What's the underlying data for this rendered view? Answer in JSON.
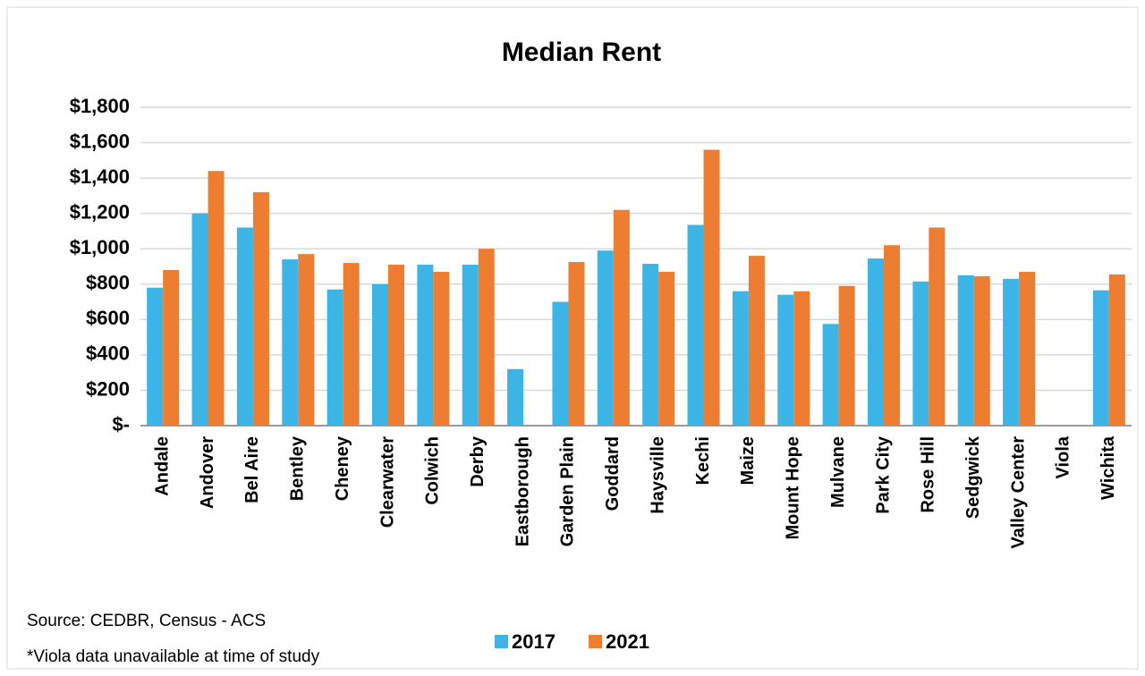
{
  "chart_data": {
    "type": "bar",
    "title": "Median Rent",
    "categories": [
      "Andale",
      "Andover",
      "Bel Aire",
      "Bentley",
      "Cheney",
      "Clearwater",
      "Colwich",
      "Derby",
      "Eastborough",
      "Garden Plain",
      "Goddard",
      "Haysville",
      "Kechi",
      "Maize",
      "Mount Hope",
      "Mulvane",
      "Park City",
      "Rose Hill",
      "Sedgwick",
      "Valley Center",
      "Viola",
      "Wichita"
    ],
    "series": [
      {
        "name": "2017",
        "color": "#3cb4e5",
        "values": [
          780,
          1200,
          1120,
          940,
          770,
          800,
          910,
          910,
          320,
          700,
          990,
          915,
          1135,
          760,
          740,
          575,
          945,
          815,
          850,
          830,
          null,
          765
        ]
      },
      {
        "name": "2021",
        "color": "#ed7d31",
        "values": [
          880,
          1440,
          1320,
          970,
          920,
          910,
          870,
          1000,
          null,
          925,
          1220,
          870,
          1560,
          960,
          760,
          790,
          1020,
          1120,
          845,
          870,
          null,
          855
        ]
      }
    ],
    "ylim": [
      0,
      1800
    ],
    "yticks": [
      {
        "value": 0,
        "label": "$-"
      },
      {
        "value": 200,
        "label": "$200"
      },
      {
        "value": 400,
        "label": "$400"
      },
      {
        "value": 600,
        "label": "$600"
      },
      {
        "value": 800,
        "label": "$800"
      },
      {
        "value": 1000,
        "label": "$1,000"
      },
      {
        "value": 1200,
        "label": "$1,200"
      },
      {
        "value": 1400,
        "label": "$1,400"
      },
      {
        "value": 1600,
        "label": "$1,600"
      },
      {
        "value": 1800,
        "label": "$1,800"
      }
    ],
    "grid": true,
    "legend": "bottom",
    "source": "Source: CEDBR, Census - ACS",
    "note": "*Viola data unavailable at time of study"
  }
}
